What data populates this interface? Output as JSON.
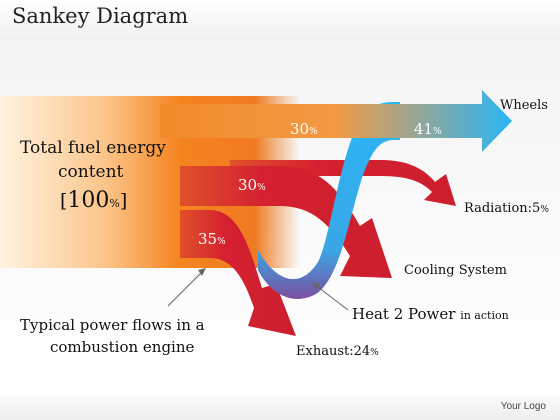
{
  "title": "Sankey Diagram",
  "source": {
    "label_line1": "Total fuel energy",
    "label_line2": "content",
    "value_open": "[",
    "value": "100",
    "value_unit": "%",
    "value_close": "]"
  },
  "flows": [
    {
      "name": "Wheels",
      "value": "41",
      "unit": "%",
      "color": "#29b6f6"
    },
    {
      "name": "Radiation:",
      "value": "5",
      "unit": "%",
      "color": "#d42030"
    },
    {
      "name": "Cooling System",
      "value": "30",
      "unit": "%",
      "color": "#d42030"
    },
    {
      "name": "Exhaust:",
      "value": "24",
      "unit": "%",
      "color": "#d42030"
    }
  ],
  "inner_labels": {
    "wheels_top": {
      "value": "30",
      "unit": "%"
    },
    "cooling": {
      "value": "30",
      "unit": "%"
    },
    "exhaust": {
      "value": "35",
      "unit": "%"
    }
  },
  "heat2power": {
    "main": "Heat 2 Power",
    "suffix": "in action"
  },
  "caption": {
    "line1": "Typical power flows in a",
    "line2": "combustion engine"
  },
  "logo": "Your Logo"
}
